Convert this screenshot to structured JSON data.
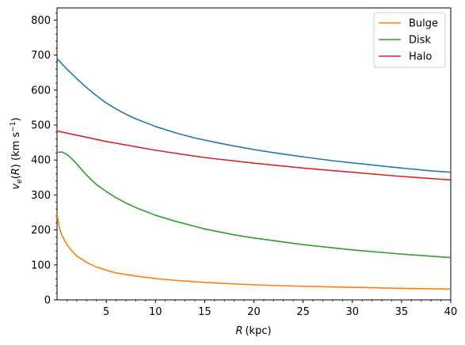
{
  "chart_data": {
    "type": "line",
    "xlabel_var": "R",
    "xlabel_unit": "(kpc)",
    "ylabel": "v_e(R) (km s^{-1})",
    "xlim": [
      0,
      40
    ],
    "ylim": [
      0,
      835
    ],
    "x_ticks": [
      5,
      10,
      15,
      20,
      25,
      30,
      35,
      40
    ],
    "y_ticks": [
      0,
      100,
      200,
      300,
      400,
      500,
      600,
      700,
      800
    ],
    "grid": false,
    "legend_placement": "top-right",
    "series": [
      {
        "name": "",
        "color": "#1f77b4",
        "x": [
          0.0,
          0.5,
          1,
          2,
          3,
          4,
          5,
          6,
          7,
          8,
          10,
          12,
          14,
          16,
          18,
          20,
          22,
          25,
          28,
          30,
          32,
          35,
          38,
          40
        ],
        "y": [
          690,
          675,
          660,
          633,
          607,
          584,
          563,
          546,
          531,
          518,
          496,
          478,
          463,
          451,
          440,
          430,
          421,
          409,
          398,
          392,
          386,
          377,
          369,
          365
        ]
      },
      {
        "name": "Bulge",
        "color": "#ff7f0e",
        "x": [
          0.0,
          0.25,
          0.5,
          1,
          1.5,
          2,
          3,
          4,
          5,
          6,
          8,
          10,
          12,
          15,
          20,
          25,
          30,
          35,
          40
        ],
        "y": [
          245,
          205,
          185,
          158,
          140,
          126,
          107,
          94,
          85,
          77,
          68,
          61,
          56,
          50,
          43,
          39,
          36,
          33,
          31
        ]
      },
      {
        "name": "Disk",
        "color": "#2ca02c",
        "x": [
          0.0,
          0.5,
          1,
          1.5,
          2,
          2.5,
          3,
          4,
          5,
          6,
          7,
          8,
          10,
          12,
          15,
          18,
          20,
          25,
          30,
          35,
          40
        ],
        "y": [
          422,
          423,
          416,
          404,
          389,
          373,
          357,
          330,
          310,
          292,
          277,
          264,
          242,
          225,
          203,
          186,
          177,
          158,
          143,
          131,
          121
        ]
      },
      {
        "name": "Halo",
        "color": "#d62728",
        "x": [
          0,
          5,
          10,
          15,
          20,
          25,
          30,
          35,
          40
        ],
        "y": [
          483,
          453,
          428,
          407,
          391,
          377,
          365,
          353,
          343
        ]
      }
    ]
  }
}
